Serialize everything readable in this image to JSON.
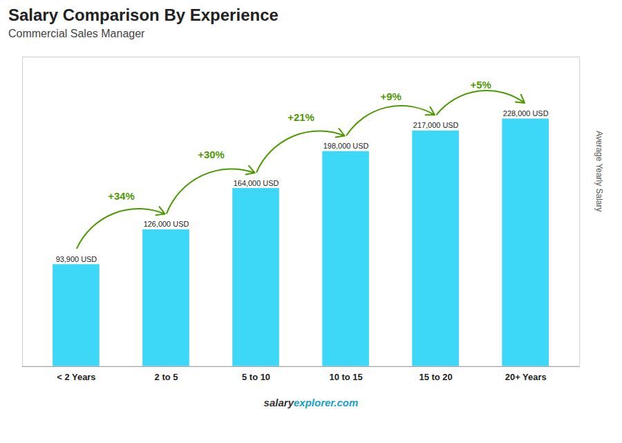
{
  "chart_data": {
    "type": "bar",
    "title": "Salary Comparison By Experience",
    "subtitle": "Commercial Sales Manager",
    "ylabel": "Average Yearly Salary",
    "categories": [
      "< 2 Years",
      "2 to 5",
      "5 to 10",
      "10 to 15",
      "15 to 20",
      "20+ Years"
    ],
    "values": [
      93900,
      126000,
      164000,
      198000,
      217000,
      228000
    ],
    "value_labels": [
      "93,900 USD",
      "126,000 USD",
      "164,000 USD",
      "198,000 USD",
      "217,000 USD",
      "228,000 USD"
    ],
    "data_labels": true,
    "color": "#3dd8f8",
    "ylim": [
      0,
      285000
    ],
    "yticks": [],
    "tick_labels": "x",
    "grid": false,
    "annotations": [
      {
        "text": "+34%",
        "from": "< 2 Years",
        "to": "2 to 5"
      },
      {
        "text": "+30%",
        "from": "2 to 5",
        "to": "5 to 10"
      },
      {
        "text": "+21%",
        "from": "5 to 10",
        "to": "10 to 15"
      },
      {
        "text": "+9%",
        "from": "10 to 15",
        "to": "15 to 20"
      },
      {
        "text": "+5%",
        "from": "15 to 20",
        "to": "20+ Years"
      }
    ],
    "footer": [
      "salary",
      "explorer.com"
    ]
  }
}
